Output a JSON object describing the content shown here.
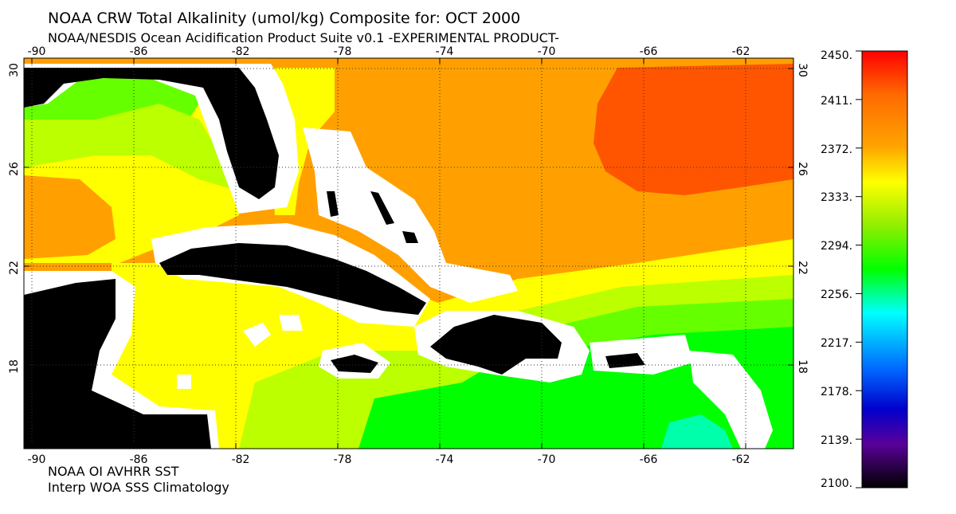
{
  "title": "NOAA CRW Total Alkalinity (umol/kg) Composite for: OCT 2000",
  "subtitle": "NOAA/NESDIS Ocean Acidification Product Suite  v0.1 -EXPERIMENTAL PRODUCT-",
  "footer_line1": "NOAA OI AVHRR SST",
  "footer_line2": "Interp WOA SSS Climatology",
  "lon_ticks": [
    "-90",
    "-86",
    "-82",
    "-78",
    "-74",
    "-70",
    "-66",
    "-62"
  ],
  "lat_ticks": [
    "30",
    "26",
    "22",
    "18"
  ],
  "colorbar": {
    "labels": [
      "2450.",
      "2411.",
      "2372.",
      "2333.",
      "2294.",
      "2256.",
      "2217.",
      "2178.",
      "2139.",
      "2100."
    ],
    "gradient": [
      "#ff0000",
      "#ff6a00",
      "#ffa500",
      "#ffff00",
      "#90ee00",
      "#00ff00",
      "#00ffff",
      "#0066ff",
      "#0000cc",
      "#5a0099",
      "#000000"
    ]
  },
  "colors": {
    "land": "#000000",
    "coast_mask": "#ffffff",
    "alk_high": "#ff5500",
    "alk_orange": "#ffa000",
    "alk_yellow": "#ffff00",
    "alk_yellowgreen": "#bbff00",
    "alk_lightgreen": "#66ff00",
    "alk_green": "#00ff00",
    "alk_teal": "#00ffaa"
  }
}
